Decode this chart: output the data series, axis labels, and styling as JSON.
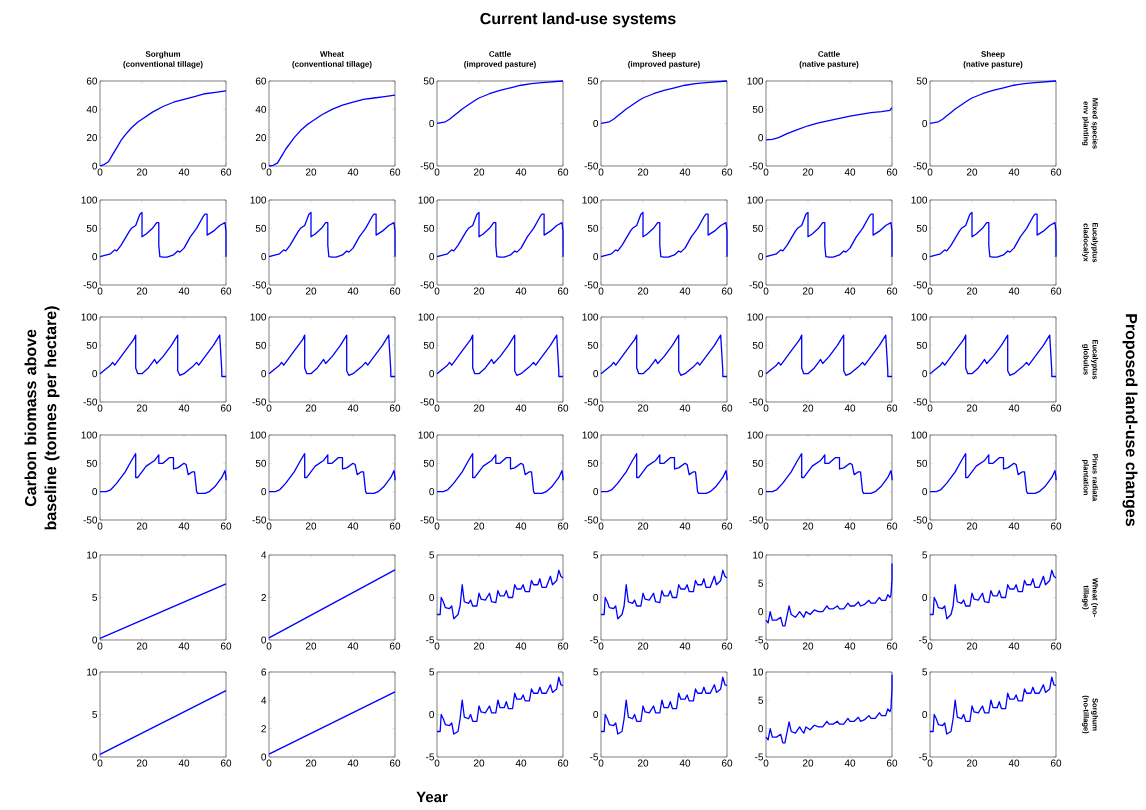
{
  "chart_data": [
    {
      "type": "other",
      "title": "Current land-use systems",
      "xlabel": "Year",
      "ylabel": "Carbon biomass above baseline (tonnes per hectare)",
      "y2label": "Proposed land-use changes"
    },
    {
      "type": "line",
      "title": "Sorghum",
      "subtitle": "(conventional tillage)",
      "color": "#0000ff",
      "x": [
        0,
        2,
        4,
        6,
        8,
        10,
        12,
        15,
        18,
        20,
        25,
        30,
        35,
        40,
        45,
        50,
        55,
        60
      ],
      "values": [
        0,
        1,
        3,
        8,
        13,
        18,
        22,
        27,
        31,
        33,
        38,
        42,
        45,
        47,
        49,
        51,
        52,
        53
      ],
      "xlim": [
        0,
        60
      ],
      "xticks": [
        0,
        20,
        40,
        60
      ],
      "ylim": [
        0,
        60
      ],
      "yticks": [
        0,
        20,
        40,
        60
      ]
    },
    {
      "type": "line",
      "title": "Wheat",
      "subtitle": "(conventional tillage)",
      "color": "#0000ff",
      "x": [
        0,
        2,
        4,
        6,
        8,
        10,
        12,
        15,
        18,
        20,
        25,
        30,
        35,
        40,
        45,
        50,
        55,
        60
      ],
      "values": [
        0,
        0.5,
        2,
        7,
        12,
        16,
        20,
        25,
        29,
        31,
        36,
        40,
        43,
        45,
        47,
        48,
        49,
        50
      ],
      "xlim": [
        0,
        60
      ],
      "xticks": [
        0,
        20,
        40,
        60
      ],
      "ylim": [
        0,
        60
      ],
      "yticks": [
        0,
        20,
        40,
        60
      ]
    },
    {
      "type": "line",
      "title": "Cattle",
      "subtitle": "(improved pasture)",
      "color": "#0000ff",
      "x": [
        0,
        2,
        4,
        6,
        8,
        10,
        12,
        15,
        18,
        20,
        25,
        30,
        35,
        40,
        45,
        50,
        55,
        60
      ],
      "values": [
        0,
        1,
        2,
        5,
        9,
        13,
        17,
        22,
        27,
        30,
        35,
        39,
        42,
        45,
        47,
        48,
        49,
        50
      ],
      "xlim": [
        0,
        60
      ],
      "xticks": [
        0,
        20,
        40,
        60
      ],
      "ylim": [
        -50,
        50
      ],
      "yticks": [
        -50,
        0,
        50
      ]
    },
    {
      "type": "line",
      "title": "Sheep",
      "subtitle": "(improved pasture)",
      "color": "#0000ff",
      "x": [
        0,
        2,
        4,
        6,
        8,
        10,
        12,
        15,
        18,
        20,
        25,
        30,
        35,
        40,
        45,
        50,
        55,
        60
      ],
      "values": [
        0,
        1,
        2,
        5,
        9,
        13,
        17,
        22,
        27,
        30,
        35,
        39,
        42,
        45,
        47,
        48,
        49,
        50
      ],
      "xlim": [
        0,
        60
      ],
      "xticks": [
        0,
        20,
        40,
        60
      ],
      "ylim": [
        -50,
        50
      ],
      "yticks": [
        -50,
        0,
        50
      ]
    },
    {
      "type": "line",
      "title": "Cattle",
      "subtitle": "(native pasture)",
      "color": "#0000ff",
      "x": [
        0,
        3,
        6,
        10,
        15,
        20,
        25,
        30,
        35,
        40,
        45,
        50,
        55,
        59,
        60
      ],
      "values": [
        -4,
        -3,
        0,
        7,
        14,
        21,
        26,
        30,
        34,
        38,
        41,
        44,
        46,
        48,
        53
      ],
      "xlim": [
        0,
        60
      ],
      "xticks": [
        0,
        20,
        40,
        60
      ],
      "ylim": [
        -50,
        100
      ],
      "yticks": [
        -50,
        0,
        50,
        100
      ]
    },
    {
      "type": "line",
      "title": "Sheep",
      "subtitle": "(native pasture)",
      "y2label": "Mixed species env planting",
      "color": "#0000ff",
      "x": [
        0,
        2,
        4,
        6,
        8,
        10,
        12,
        15,
        18,
        20,
        25,
        30,
        35,
        40,
        45,
        50,
        55,
        60
      ],
      "values": [
        0,
        1,
        2,
        5,
        9,
        13,
        17,
        22,
        27,
        30,
        35,
        39,
        42,
        45,
        47,
        48,
        49,
        50
      ],
      "xlim": [
        0,
        60
      ],
      "xticks": [
        0,
        20,
        40,
        60
      ],
      "ylim": [
        -50,
        50
      ],
      "yticks": [
        -50,
        0,
        50
      ]
    },
    {
      "type": "line",
      "color": "#0000ff",
      "x": [
        0,
        5,
        7,
        8,
        10,
        14,
        15,
        17,
        19,
        20,
        20,
        22,
        25,
        27,
        28,
        28,
        28.5,
        30,
        32,
        35,
        37,
        38,
        40,
        43,
        46,
        49,
        50,
        51,
        51,
        54,
        57,
        59.5,
        60,
        60
      ],
      "values": [
        0,
        5,
        12,
        10,
        20,
        45,
        50,
        55,
        75,
        78,
        35,
        40,
        50,
        60,
        60,
        20,
        0,
        -1,
        -1,
        3,
        10,
        8,
        15,
        35,
        50,
        70,
        75,
        75,
        38,
        45,
        55,
        60,
        45,
        0
      ],
      "xlim": [
        0,
        60
      ],
      "xticks": [
        0,
        20,
        40,
        60
      ],
      "ylim": [
        -50,
        100
      ],
      "yticks": [
        -50,
        0,
        50,
        100
      ]
    },
    {
      "type": "line",
      "color": "#0000ff",
      "x": [
        0,
        5,
        7,
        8,
        10,
        14,
        15,
        17,
        19,
        20,
        20,
        22,
        25,
        27,
        28,
        28,
        28.5,
        30,
        32,
        35,
        37,
        38,
        40,
        43,
        46,
        49,
        50,
        51,
        51,
        54,
        57,
        59.5,
        60,
        60
      ],
      "values": [
        0,
        5,
        12,
        10,
        20,
        45,
        50,
        55,
        75,
        78,
        35,
        40,
        50,
        60,
        60,
        20,
        0,
        -1,
        -1,
        3,
        10,
        8,
        15,
        35,
        50,
        70,
        75,
        75,
        38,
        45,
        55,
        60,
        45,
        0
      ],
      "xlim": [
        0,
        60
      ],
      "xticks": [
        0,
        20,
        40,
        60
      ],
      "ylim": [
        -50,
        100
      ],
      "yticks": [
        -50,
        0,
        50,
        100
      ]
    },
    {
      "type": "line",
      "color": "#0000ff",
      "x": [
        0,
        5,
        7,
        8,
        10,
        14,
        15,
        17,
        19,
        20,
        20,
        22,
        25,
        27,
        28,
        28,
        28.5,
        30,
        32,
        35,
        37,
        38,
        40,
        43,
        46,
        49,
        50,
        51,
        51,
        54,
        57,
        59.5,
        60,
        60
      ],
      "values": [
        0,
        5,
        12,
        10,
        20,
        45,
        50,
        55,
        75,
        78,
        35,
        40,
        50,
        60,
        60,
        20,
        0,
        -1,
        -1,
        3,
        10,
        8,
        15,
        35,
        50,
        70,
        75,
        75,
        38,
        45,
        55,
        60,
        45,
        0
      ],
      "xlim": [
        0,
        60
      ],
      "xticks": [
        0,
        20,
        40,
        60
      ],
      "ylim": [
        -50,
        100
      ],
      "yticks": [
        -50,
        0,
        50,
        100
      ]
    },
    {
      "type": "line",
      "color": "#0000ff",
      "x": [
        0,
        5,
        7,
        8,
        10,
        14,
        15,
        17,
        19,
        20,
        20,
        22,
        25,
        27,
        28,
        28,
        28.5,
        30,
        32,
        35,
        37,
        38,
        40,
        43,
        46,
        49,
        50,
        51,
        51,
        54,
        57,
        59.5,
        60,
        60
      ],
      "values": [
        0,
        5,
        12,
        10,
        20,
        45,
        50,
        55,
        75,
        78,
        35,
        40,
        50,
        60,
        60,
        20,
        0,
        -1,
        -1,
        3,
        10,
        8,
        15,
        35,
        50,
        70,
        75,
        75,
        38,
        45,
        55,
        60,
        45,
        0
      ],
      "xlim": [
        0,
        60
      ],
      "xticks": [
        0,
        20,
        40,
        60
      ],
      "ylim": [
        -50,
        100
      ],
      "yticks": [
        -50,
        0,
        50,
        100
      ]
    },
    {
      "type": "line",
      "color": "#0000ff",
      "x": [
        0,
        5,
        7,
        8,
        10,
        14,
        15,
        17,
        19,
        20,
        20,
        22,
        25,
        27,
        28,
        28,
        28.5,
        30,
        32,
        35,
        37,
        38,
        40,
        43,
        46,
        49,
        50,
        51,
        51,
        54,
        57,
        59.5,
        60,
        60
      ],
      "values": [
        0,
        5,
        12,
        10,
        20,
        45,
        50,
        55,
        75,
        78,
        35,
        40,
        50,
        60,
        60,
        20,
        0,
        -1,
        -1,
        3,
        10,
        8,
        15,
        35,
        50,
        70,
        75,
        75,
        38,
        45,
        55,
        60,
        45,
        0
      ],
      "xlim": [
        0,
        60
      ],
      "xticks": [
        0,
        20,
        40,
        60
      ],
      "ylim": [
        -50,
        100
      ],
      "yticks": [
        -50,
        0,
        50,
        100
      ]
    },
    {
      "type": "line",
      "y2label": "Eucalyptus cladocalyx",
      "color": "#0000ff",
      "x": [
        0,
        5,
        7,
        8,
        10,
        14,
        15,
        17,
        19,
        20,
        20,
        22,
        25,
        27,
        28,
        28,
        28.5,
        30,
        32,
        35,
        37,
        38,
        40,
        43,
        46,
        49,
        50,
        51,
        51,
        54,
        57,
        59.5,
        60,
        60
      ],
      "values": [
        0,
        5,
        12,
        10,
        20,
        45,
        50,
        55,
        75,
        78,
        35,
        40,
        50,
        60,
        60,
        20,
        0,
        -1,
        -1,
        3,
        10,
        8,
        15,
        35,
        50,
        70,
        75,
        75,
        38,
        45,
        55,
        60,
        45,
        0
      ],
      "xlim": [
        0,
        60
      ],
      "xticks": [
        0,
        20,
        40,
        60
      ],
      "ylim": [
        -50,
        100
      ],
      "yticks": [
        -50,
        0,
        50,
        100
      ]
    },
    {
      "type": "line",
      "color": "#0000ff",
      "x": [
        0,
        5,
        6,
        7,
        8,
        12,
        16,
        17,
        17,
        18,
        20,
        23,
        25,
        26,
        27,
        30,
        34,
        37,
        37,
        38,
        40,
        44,
        46,
        47,
        50,
        54,
        57,
        58,
        58,
        60
      ],
      "values": [
        0,
        15,
        20,
        15,
        20,
        40,
        60,
        68,
        10,
        0,
        0,
        10,
        20,
        25,
        18,
        30,
        50,
        68,
        5,
        -3,
        0,
        12,
        20,
        15,
        30,
        50,
        68,
        5,
        -5,
        -5
      ],
      "xlim": [
        0,
        60
      ],
      "xticks": [
        0,
        20,
        40,
        60
      ],
      "ylim": [
        -50,
        100
      ],
      "yticks": [
        -50,
        0,
        50,
        100
      ]
    },
    {
      "type": "line",
      "color": "#0000ff",
      "x": [
        0,
        5,
        6,
        7,
        8,
        12,
        16,
        17,
        17,
        18,
        20,
        23,
        25,
        26,
        27,
        30,
        34,
        37,
        37,
        38,
        40,
        44,
        46,
        47,
        50,
        54,
        57,
        58,
        58,
        60
      ],
      "values": [
        0,
        15,
        20,
        15,
        20,
        40,
        60,
        68,
        10,
        0,
        0,
        10,
        20,
        25,
        18,
        30,
        50,
        68,
        5,
        -3,
        0,
        12,
        20,
        15,
        30,
        50,
        68,
        5,
        -5,
        -5
      ],
      "xlim": [
        0,
        60
      ],
      "xticks": [
        0,
        20,
        40,
        60
      ],
      "ylim": [
        -50,
        100
      ],
      "yticks": [
        -50,
        0,
        50,
        100
      ]
    },
    {
      "type": "line",
      "color": "#0000ff",
      "x": [
        0,
        5,
        6,
        7,
        8,
        12,
        16,
        17,
        17,
        18,
        20,
        23,
        25,
        26,
        27,
        30,
        34,
        37,
        37,
        38,
        40,
        44,
        46,
        47,
        50,
        54,
        57,
        58,
        58,
        60
      ],
      "values": [
        0,
        15,
        20,
        15,
        20,
        40,
        60,
        68,
        10,
        0,
        0,
        10,
        20,
        25,
        18,
        30,
        50,
        68,
        5,
        -3,
        0,
        12,
        20,
        15,
        30,
        50,
        68,
        5,
        -5,
        -5
      ],
      "xlim": [
        0,
        60
      ],
      "xticks": [
        0,
        20,
        40,
        60
      ],
      "ylim": [
        -50,
        100
      ],
      "yticks": [
        -50,
        0,
        50,
        100
      ]
    },
    {
      "type": "line",
      "color": "#0000ff",
      "x": [
        0,
        5,
        6,
        7,
        8,
        12,
        16,
        17,
        17,
        18,
        20,
        23,
        25,
        26,
        27,
        30,
        34,
        37,
        37,
        38,
        40,
        44,
        46,
        47,
        50,
        54,
        57,
        58,
        58,
        60
      ],
      "values": [
        0,
        15,
        20,
        15,
        20,
        40,
        60,
        68,
        10,
        0,
        0,
        10,
        20,
        25,
        18,
        30,
        50,
        68,
        5,
        -3,
        0,
        12,
        20,
        15,
        30,
        50,
        68,
        5,
        -5,
        -5
      ],
      "xlim": [
        0,
        60
      ],
      "xticks": [
        0,
        20,
        40,
        60
      ],
      "ylim": [
        -50,
        100
      ],
      "yticks": [
        -50,
        0,
        50,
        100
      ]
    },
    {
      "type": "line",
      "color": "#0000ff",
      "x": [
        0,
        5,
        6,
        7,
        8,
        12,
        16,
        17,
        17,
        18,
        20,
        23,
        25,
        26,
        27,
        30,
        34,
        37,
        37,
        38,
        40,
        44,
        46,
        47,
        50,
        54,
        57,
        58,
        58,
        60
      ],
      "values": [
        0,
        15,
        20,
        15,
        20,
        40,
        60,
        68,
        10,
        0,
        0,
        10,
        20,
        25,
        18,
        30,
        50,
        68,
        5,
        -3,
        0,
        12,
        20,
        15,
        30,
        50,
        68,
        5,
        -5,
        -5
      ],
      "xlim": [
        0,
        60
      ],
      "xticks": [
        0,
        20,
        40,
        60
      ],
      "ylim": [
        -50,
        100
      ],
      "yticks": [
        -50,
        0,
        50,
        100
      ]
    },
    {
      "type": "line",
      "y2label": "Eucalyptus globulus",
      "color": "#0000ff",
      "x": [
        0,
        5,
        6,
        7,
        8,
        12,
        16,
        17,
        17,
        18,
        20,
        23,
        25,
        26,
        27,
        30,
        34,
        37,
        37,
        38,
        40,
        44,
        46,
        47,
        50,
        54,
        57,
        58,
        58,
        60
      ],
      "values": [
        0,
        15,
        20,
        15,
        20,
        40,
        60,
        68,
        10,
        0,
        0,
        10,
        20,
        25,
        18,
        30,
        50,
        68,
        5,
        -3,
        0,
        12,
        20,
        15,
        30,
        50,
        68,
        5,
        -5,
        -5
      ],
      "xlim": [
        0,
        60
      ],
      "xticks": [
        0,
        20,
        40,
        60
      ],
      "ylim": [
        -50,
        100
      ],
      "yticks": [
        -50,
        0,
        50,
        100
      ]
    },
    {
      "type": "line",
      "color": "#0000ff",
      "x": [
        0,
        3,
        5,
        8,
        12,
        15,
        17,
        17,
        18,
        22,
        26,
        28,
        28,
        30,
        33,
        35,
        35,
        37,
        40,
        41,
        42,
        44,
        45,
        46,
        46.5,
        50,
        52,
        55,
        58,
        59.5,
        60,
        60
      ],
      "values": [
        0,
        0,
        3,
        15,
        35,
        55,
        67,
        25,
        25,
        45,
        55,
        65,
        50,
        50,
        60,
        60,
        40,
        42,
        50,
        48,
        30,
        35,
        35,
        0,
        -3,
        -3,
        0,
        10,
        25,
        37,
        25,
        20
      ],
      "xlim": [
        0,
        60
      ],
      "xticks": [
        0,
        20,
        40,
        60
      ],
      "ylim": [
        -50,
        100
      ],
      "yticks": [
        -50,
        0,
        50,
        100
      ]
    },
    {
      "type": "line",
      "color": "#0000ff",
      "x": [
        0,
        3,
        5,
        8,
        12,
        15,
        17,
        17,
        18,
        22,
        26,
        28,
        28,
        30,
        33,
        35,
        35,
        37,
        40,
        41,
        42,
        44,
        45,
        46,
        46.5,
        50,
        52,
        55,
        58,
        59.5,
        60,
        60
      ],
      "values": [
        0,
        0,
        3,
        15,
        35,
        55,
        67,
        25,
        25,
        45,
        55,
        65,
        50,
        50,
        60,
        60,
        40,
        42,
        50,
        48,
        30,
        35,
        35,
        0,
        -3,
        -3,
        0,
        10,
        25,
        37,
        25,
        20
      ],
      "xlim": [
        0,
        60
      ],
      "xticks": [
        0,
        20,
        40,
        60
      ],
      "ylim": [
        -50,
        100
      ],
      "yticks": [
        -50,
        0,
        50,
        100
      ]
    },
    {
      "type": "line",
      "color": "#0000ff",
      "x": [
        0,
        3,
        5,
        8,
        12,
        15,
        17,
        17,
        18,
        22,
        26,
        28,
        28,
        30,
        33,
        35,
        35,
        37,
        40,
        41,
        42,
        44,
        45,
        46,
        46.5,
        50,
        52,
        55,
        58,
        59.5,
        60,
        60
      ],
      "values": [
        0,
        0,
        3,
        15,
        35,
        55,
        67,
        25,
        25,
        45,
        55,
        65,
        50,
        50,
        60,
        60,
        40,
        42,
        50,
        48,
        30,
        35,
        35,
        0,
        -3,
        -3,
        0,
        10,
        25,
        37,
        25,
        20
      ],
      "xlim": [
        0,
        60
      ],
      "xticks": [
        0,
        20,
        40,
        60
      ],
      "ylim": [
        -50,
        100
      ],
      "yticks": [
        -50,
        0,
        50,
        100
      ]
    },
    {
      "type": "line",
      "color": "#0000ff",
      "x": [
        0,
        3,
        5,
        8,
        12,
        15,
        17,
        17,
        18,
        22,
        26,
        28,
        28,
        30,
        33,
        35,
        35,
        37,
        40,
        41,
        42,
        44,
        45,
        46,
        46.5,
        50,
        52,
        55,
        58,
        59.5,
        60,
        60
      ],
      "values": [
        0,
        0,
        3,
        15,
        35,
        55,
        67,
        25,
        25,
        45,
        55,
        65,
        50,
        50,
        60,
        60,
        40,
        42,
        50,
        48,
        30,
        35,
        35,
        0,
        -3,
        -3,
        0,
        10,
        25,
        37,
        25,
        20
      ],
      "xlim": [
        0,
        60
      ],
      "xticks": [
        0,
        20,
        40,
        60
      ],
      "ylim": [
        -50,
        100
      ],
      "yticks": [
        -50,
        0,
        50,
        100
      ]
    },
    {
      "type": "line",
      "color": "#0000ff",
      "x": [
        0,
        3,
        5,
        8,
        12,
        15,
        17,
        17,
        18,
        22,
        26,
        28,
        28,
        30,
        33,
        35,
        35,
        37,
        40,
        41,
        42,
        44,
        45,
        46,
        46.5,
        50,
        52,
        55,
        58,
        59.5,
        60,
        60
      ],
      "values": [
        0,
        0,
        3,
        15,
        35,
        55,
        67,
        25,
        25,
        45,
        55,
        65,
        50,
        50,
        60,
        60,
        40,
        42,
        50,
        48,
        30,
        35,
        35,
        0,
        -3,
        -3,
        0,
        10,
        25,
        37,
        25,
        20
      ],
      "xlim": [
        0,
        60
      ],
      "xticks": [
        0,
        20,
        40,
        60
      ],
      "ylim": [
        -50,
        100
      ],
      "yticks": [
        -50,
        0,
        50,
        100
      ]
    },
    {
      "type": "line",
      "y2label": "Pinus radiata plantation",
      "color": "#0000ff",
      "x": [
        0,
        3,
        5,
        8,
        12,
        15,
        17,
        17,
        18,
        22,
        26,
        28,
        28,
        30,
        33,
        35,
        35,
        37,
        40,
        41,
        42,
        44,
        45,
        46,
        46.5,
        50,
        52,
        55,
        58,
        59.5,
        60,
        60
      ],
      "values": [
        0,
        0,
        3,
        15,
        35,
        55,
        67,
        25,
        25,
        45,
        55,
        65,
        50,
        50,
        60,
        60,
        40,
        42,
        50,
        48,
        30,
        35,
        35,
        0,
        -3,
        -3,
        0,
        10,
        25,
        37,
        25,
        20
      ],
      "xlim": [
        0,
        60
      ],
      "xticks": [
        0,
        20,
        40,
        60
      ],
      "ylim": [
        -50,
        100
      ],
      "yticks": [
        -50,
        0,
        50,
        100
      ]
    },
    {
      "type": "line",
      "color": "#0000ff",
      "x": [
        0,
        60
      ],
      "values": [
        0.2,
        6.6
      ],
      "xlim": [
        0,
        60
      ],
      "xticks": [
        0,
        20,
        40,
        60
      ],
      "ylim": [
        0,
        10
      ],
      "yticks": [
        0,
        5,
        10
      ]
    },
    {
      "type": "line",
      "color": "#0000ff",
      "x": [
        0,
        60
      ],
      "values": [
        0.1,
        3.3
      ],
      "xlim": [
        0,
        60
      ],
      "xticks": [
        0,
        20,
        40,
        60
      ],
      "ylim": [
        0,
        4
      ],
      "yticks": [
        0,
        2,
        4
      ]
    },
    {
      "type": "line",
      "color": "#0000ff",
      "x": [
        0,
        1.5,
        2,
        3,
        4,
        6,
        7,
        8,
        10,
        11,
        12,
        13,
        15,
        16,
        17,
        19,
        20,
        21,
        23,
        25,
        26,
        28,
        29,
        30,
        32,
        33,
        34,
        36,
        37,
        38,
        40,
        41,
        42,
        44,
        45,
        46,
        48,
        49,
        50,
        52,
        54,
        55,
        57,
        58,
        59,
        60
      ],
      "values": [
        -2,
        -2,
        0,
        -0.5,
        -1.2,
        -1.3,
        -1,
        -2.5,
        -2,
        -1,
        1.5,
        -0.5,
        -0.7,
        -0.3,
        -1,
        -1,
        0.5,
        -0.2,
        -0.3,
        0.5,
        -0.5,
        -0.6,
        0.8,
        0.2,
        0.2,
        0.8,
        0,
        0,
        1.5,
        1,
        1,
        1.5,
        0.7,
        0.7,
        2,
        1.5,
        1.5,
        2.2,
        1.2,
        1.2,
        2.5,
        1.5,
        2,
        3.2,
        2.5,
        2.3
      ],
      "xlim": [
        0,
        60
      ],
      "xticks": [
        0,
        20,
        40,
        60
      ],
      "ylim": [
        -5,
        5
      ],
      "yticks": [
        -5,
        0,
        5
      ]
    },
    {
      "type": "line",
      "color": "#0000ff",
      "x": [
        0,
        1.5,
        2,
        3,
        4,
        6,
        7,
        8,
        10,
        11,
        12,
        13,
        15,
        16,
        17,
        19,
        20,
        21,
        23,
        25,
        26,
        28,
        29,
        30,
        32,
        33,
        34,
        36,
        37,
        38,
        40,
        41,
        42,
        44,
        45,
        46,
        48,
        49,
        50,
        52,
        54,
        55,
        57,
        58,
        59,
        60
      ],
      "values": [
        -2,
        -2,
        0,
        -0.5,
        -1.2,
        -1.3,
        -1,
        -2.5,
        -2,
        -1,
        1.5,
        -0.5,
        -0.7,
        -0.3,
        -1,
        -1,
        0.5,
        -0.2,
        -0.3,
        0.5,
        -0.5,
        -0.6,
        0.8,
        0.2,
        0.2,
        0.8,
        0,
        0,
        1.5,
        1,
        1,
        1.5,
        0.7,
        0.7,
        2,
        1.5,
        1.5,
        2.2,
        1.2,
        1.2,
        2.5,
        1.5,
        2,
        3.2,
        2.5,
        2.3
      ],
      "xlim": [
        0,
        60
      ],
      "xticks": [
        0,
        20,
        40,
        60
      ],
      "ylim": [
        -5,
        5
      ],
      "yticks": [
        -5,
        0,
        5
      ]
    },
    {
      "type": "line",
      "color": "#0000ff",
      "x": [
        0,
        1,
        2,
        3,
        5,
        7,
        8,
        9,
        11,
        12,
        14,
        16,
        17,
        18,
        19,
        21,
        23,
        25,
        27,
        29,
        30,
        32,
        34,
        35,
        37,
        39,
        40,
        42,
        44,
        45,
        47,
        49,
        50,
        52,
        54,
        55,
        57,
        58,
        59,
        59.5,
        60,
        60
      ],
      "values": [
        -1.5,
        -2,
        0,
        -1.5,
        -1.5,
        -1,
        -2.5,
        -2.5,
        1,
        -0.5,
        -1,
        0,
        -0.5,
        -1,
        0,
        -0.5,
        0.3,
        0,
        0,
        1,
        0.5,
        0.5,
        1,
        0.5,
        0.5,
        1.5,
        1,
        1,
        1.7,
        1,
        1.3,
        2,
        1.5,
        1.5,
        2.5,
        2,
        2,
        3,
        2.5,
        3,
        5.5,
        8.5
      ],
      "xlim": [
        0,
        60
      ],
      "xticks": [
        0,
        20,
        40,
        60
      ],
      "ylim": [
        -5,
        10
      ],
      "yticks": [
        -5,
        0,
        5,
        10
      ]
    },
    {
      "type": "line",
      "y2label": "Wheat (no-tillage)",
      "color": "#0000ff",
      "x": [
        0,
        1.5,
        2,
        3,
        4,
        6,
        7,
        8,
        10,
        11,
        12,
        13,
        15,
        16,
        17,
        19,
        20,
        21,
        23,
        25,
        26,
        28,
        29,
        30,
        32,
        33,
        34,
        36,
        37,
        38,
        40,
        41,
        42,
        44,
        45,
        46,
        48,
        49,
        50,
        52,
        54,
        55,
        57,
        58,
        59,
        60
      ],
      "values": [
        -2,
        -2,
        0,
        -0.5,
        -1.2,
        -1.3,
        -1,
        -2.5,
        -2,
        -1,
        1.5,
        -0.5,
        -0.7,
        -0.3,
        -1,
        -1,
        0.5,
        -0.2,
        -0.3,
        0.5,
        -0.5,
        -0.6,
        0.8,
        0.2,
        0.2,
        0.8,
        0,
        0,
        1.5,
        1,
        1,
        1.5,
        0.7,
        0.7,
        2,
        1.5,
        1.5,
        2.2,
        1.2,
        1.2,
        2.5,
        1.5,
        2,
        3.2,
        2.5,
        2.3
      ],
      "xlim": [
        0,
        60
      ],
      "xticks": [
        0,
        20,
        40,
        60
      ],
      "ylim": [
        -5,
        5
      ],
      "yticks": [
        -5,
        0,
        5
      ]
    },
    {
      "type": "line",
      "color": "#0000ff",
      "x": [
        0,
        60
      ],
      "values": [
        0.3,
        7.8
      ],
      "xlim": [
        0,
        60
      ],
      "xticks": [
        0,
        20,
        40,
        60
      ],
      "ylim": [
        0,
        10
      ],
      "yticks": [
        0,
        5,
        10
      ]
    },
    {
      "type": "line",
      "color": "#0000ff",
      "x": [
        0,
        60
      ],
      "values": [
        0.2,
        4.6
      ],
      "xlim": [
        0,
        60
      ],
      "xticks": [
        0,
        20,
        40,
        60
      ],
      "ylim": [
        0,
        6
      ],
      "yticks": [
        0,
        2,
        4,
        6
      ]
    },
    {
      "type": "line",
      "color": "#0000ff",
      "x": [
        0,
        1.5,
        2,
        3,
        4,
        6,
        7,
        8,
        10,
        11,
        12,
        13,
        15,
        16,
        17,
        19,
        20,
        21,
        23,
        25,
        26,
        28,
        29,
        30,
        32,
        33,
        34,
        36,
        37,
        38,
        40,
        41,
        42,
        44,
        45,
        46,
        48,
        49,
        50,
        52,
        54,
        55,
        57,
        58,
        59,
        60
      ],
      "values": [
        -2,
        -2,
        0,
        -0.5,
        -1.2,
        -1.3,
        -1,
        -2.3,
        -2,
        -0.5,
        1.7,
        -0.3,
        -0.5,
        0,
        -0.8,
        -0.8,
        1,
        0.3,
        0.2,
        1,
        0.2,
        0.2,
        1.7,
        0.8,
        0.8,
        1.5,
        0.7,
        0.7,
        2.5,
        1.8,
        1.8,
        2.3,
        1.6,
        1.6,
        3,
        2.5,
        2.5,
        3.2,
        2.5,
        2.5,
        3.5,
        2.6,
        3,
        4.4,
        3.5,
        3.4
      ],
      "xlim": [
        0,
        60
      ],
      "xticks": [
        0,
        20,
        40,
        60
      ],
      "ylim": [
        -5,
        5
      ],
      "yticks": [
        -5,
        0,
        5
      ]
    },
    {
      "type": "line",
      "color": "#0000ff",
      "x": [
        0,
        1.5,
        2,
        3,
        4,
        6,
        7,
        8,
        10,
        11,
        12,
        13,
        15,
        16,
        17,
        19,
        20,
        21,
        23,
        25,
        26,
        28,
        29,
        30,
        32,
        33,
        34,
        36,
        37,
        38,
        40,
        41,
        42,
        44,
        45,
        46,
        48,
        49,
        50,
        52,
        54,
        55,
        57,
        58,
        59,
        60
      ],
      "values": [
        -2,
        -2,
        0,
        -0.5,
        -1.2,
        -1.3,
        -1,
        -2.3,
        -2,
        -0.5,
        1.7,
        -0.3,
        -0.5,
        0,
        -0.8,
        -0.8,
        1,
        0.3,
        0.2,
        1,
        0.2,
        0.2,
        1.7,
        0.8,
        0.8,
        1.5,
        0.7,
        0.7,
        2.5,
        1.8,
        1.8,
        2.3,
        1.6,
        1.6,
        3,
        2.5,
        2.5,
        3.2,
        2.5,
        2.5,
        3.5,
        2.6,
        3,
        4.4,
        3.5,
        3.4
      ],
      "xlim": [
        0,
        60
      ],
      "xticks": [
        0,
        20,
        40,
        60
      ],
      "ylim": [
        -5,
        5
      ],
      "yticks": [
        -5,
        0,
        5
      ]
    },
    {
      "type": "line",
      "color": "#0000ff",
      "x": [
        0,
        1,
        2,
        3,
        5,
        7,
        8,
        9,
        11,
        12,
        14,
        16,
        17,
        18,
        19,
        21,
        23,
        25,
        27,
        29,
        30,
        32,
        34,
        35,
        37,
        39,
        40,
        42,
        44,
        45,
        47,
        49,
        50,
        52,
        54,
        55,
        57,
        58,
        59,
        59.5,
        60,
        60
      ],
      "values": [
        -1.5,
        -2,
        0,
        -1.5,
        -1.5,
        -1,
        -2.5,
        -2.5,
        1.2,
        -0.5,
        -0.8,
        0.3,
        -0.3,
        -0.8,
        0.3,
        -0.2,
        0.6,
        0.3,
        0.3,
        1.3,
        0.8,
        0.8,
        1.3,
        0.8,
        0.8,
        1.8,
        1.3,
        1.3,
        2,
        1.3,
        1.6,
        2.3,
        1.8,
        1.8,
        2.8,
        2.3,
        2.3,
        3.5,
        3,
        3.5,
        7,
        9.5
      ],
      "xlim": [
        0,
        60
      ],
      "xticks": [
        0,
        20,
        40,
        60
      ],
      "ylim": [
        -5,
        10
      ],
      "yticks": [
        -5,
        0,
        5,
        10
      ]
    },
    {
      "type": "line",
      "y2label": "Sorghum (no-tillage)",
      "color": "#0000ff",
      "x": [
        0,
        1.5,
        2,
        3,
        4,
        6,
        7,
        8,
        10,
        11,
        12,
        13,
        15,
        16,
        17,
        19,
        20,
        21,
        23,
        25,
        26,
        28,
        29,
        30,
        32,
        33,
        34,
        36,
        37,
        38,
        40,
        41,
        42,
        44,
        45,
        46,
        48,
        49,
        50,
        52,
        54,
        55,
        57,
        58,
        59,
        60
      ],
      "values": [
        -2,
        -2,
        0,
        -0.5,
        -1.2,
        -1.3,
        -1,
        -2.3,
        -2,
        -0.5,
        1.7,
        -0.3,
        -0.5,
        0,
        -0.8,
        -0.8,
        1,
        0.3,
        0.2,
        1,
        0.2,
        0.2,
        1.7,
        0.8,
        0.8,
        1.5,
        0.7,
        0.7,
        2.5,
        1.8,
        1.8,
        2.3,
        1.6,
        1.6,
        3,
        2.5,
        2.5,
        3.2,
        2.5,
        2.5,
        3.5,
        2.6,
        3,
        4.4,
        3.5,
        3.4
      ],
      "xlim": [
        0,
        60
      ],
      "xticks": [
        0,
        20,
        40,
        60
      ],
      "ylim": [
        -5,
        5
      ],
      "yticks": [
        -5,
        0,
        5
      ]
    }
  ]
}
